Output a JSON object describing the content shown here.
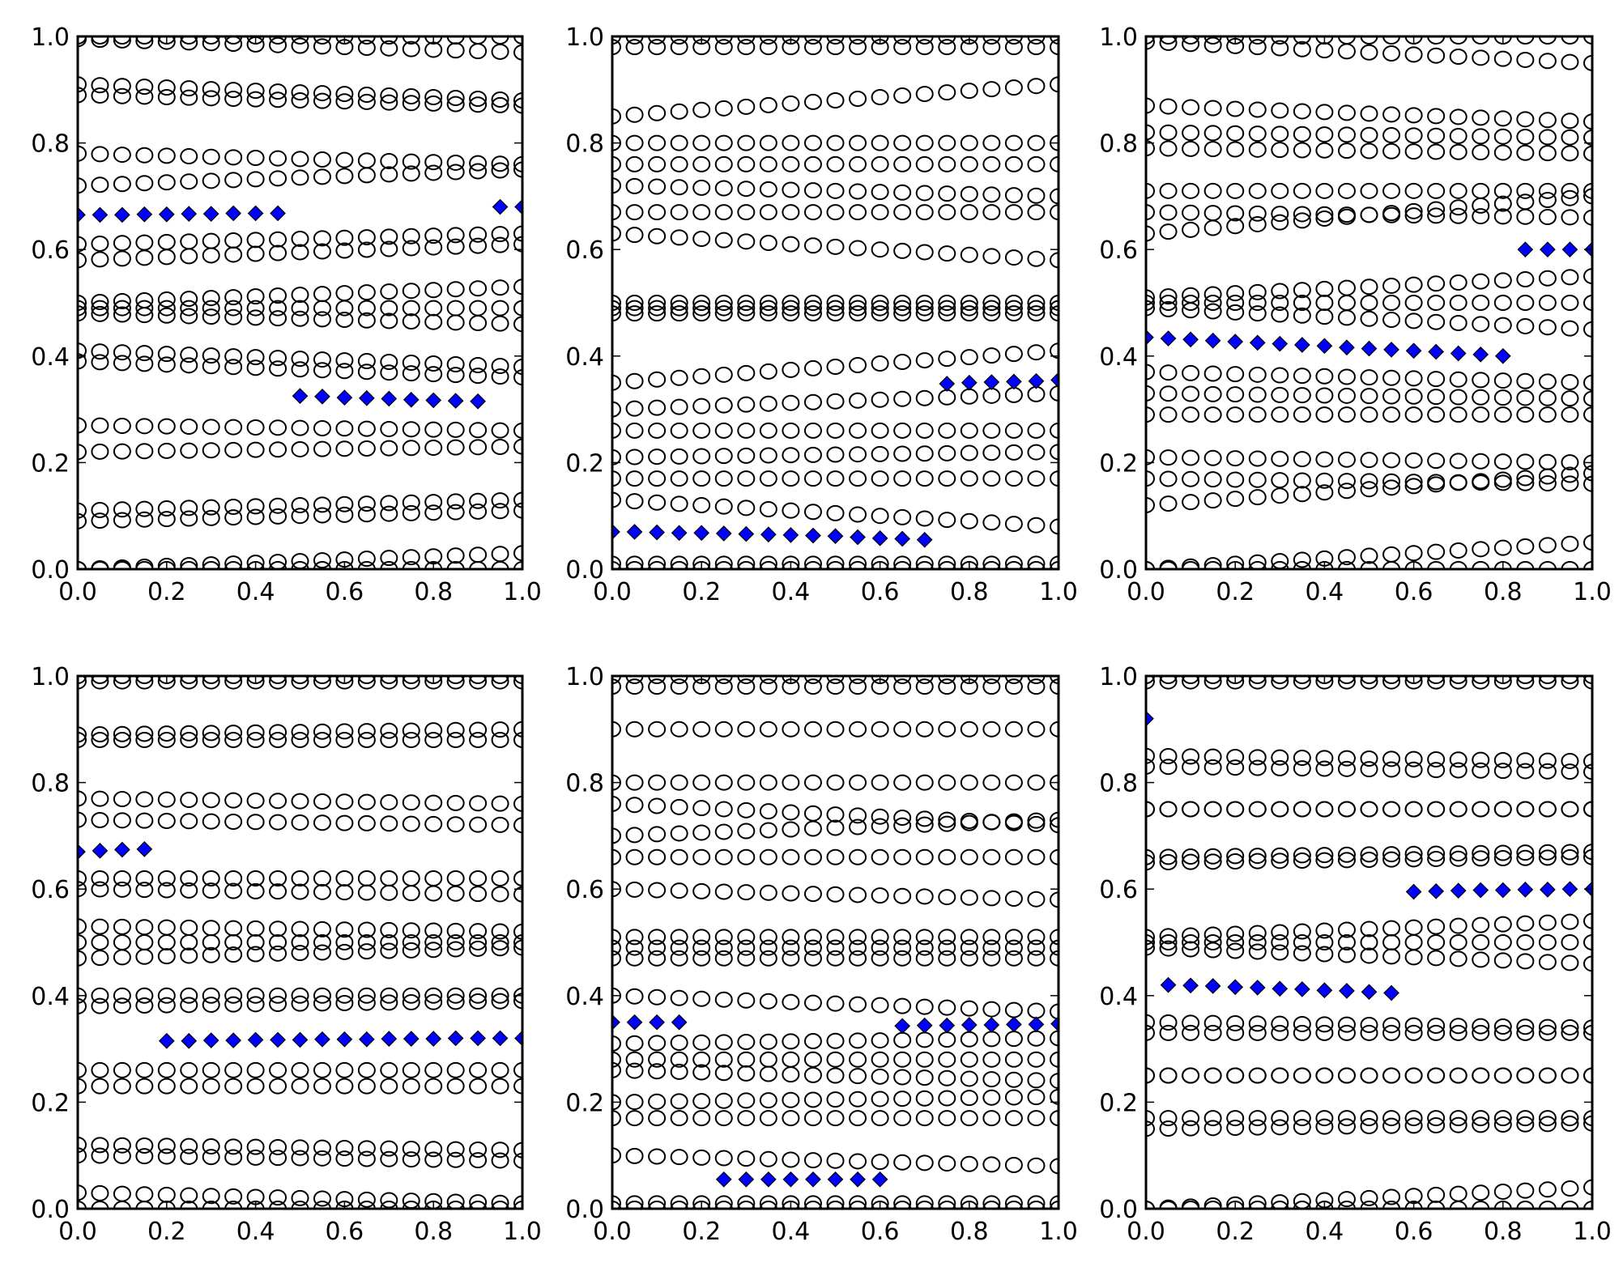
{
  "chart_data": [
    {
      "type": "scatter",
      "title": "",
      "xlabel": "",
      "ylabel": "",
      "xlim": [
        0,
        1
      ],
      "ylim": [
        0,
        1
      ],
      "x_ticks": [
        "0.0",
        "0.2",
        "0.4",
        "0.6",
        "0.8",
        "1.0"
      ],
      "y_ticks": [
        "0.0",
        "0.2",
        "0.4",
        "0.6",
        "0.8",
        "1.0"
      ],
      "x": [
        0,
        0.05,
        0.1,
        0.15,
        0.2,
        0.25,
        0.3,
        0.35,
        0.4,
        0.45,
        0.5,
        0.55,
        0.6,
        0.65,
        0.7,
        0.75,
        0.8,
        0.85,
        0.9,
        0.95,
        1.0
      ],
      "circle_series_y_start_end": [
        [
          1.0,
          1.0
        ],
        [
          0.995,
          0.97
        ],
        [
          0.91,
          0.88
        ],
        [
          0.89,
          0.87
        ],
        [
          0.78,
          0.76
        ],
        [
          0.72,
          0.75
        ],
        [
          0.61,
          0.63
        ],
        [
          0.58,
          0.61
        ],
        [
          0.5,
          0.53
        ],
        [
          0.49,
          0.49
        ],
        [
          0.48,
          0.46
        ],
        [
          0.41,
          0.38
        ],
        [
          0.39,
          0.36
        ],
        [
          0.27,
          0.26
        ],
        [
          0.22,
          0.23
        ],
        [
          0.11,
          0.13
        ],
        [
          0.09,
          0.11
        ],
        [
          0.0,
          0.03
        ],
        [
          0.0,
          0.0
        ]
      ],
      "diamond_series": [
        {
          "x": [
            0,
            0.05,
            0.1,
            0.15,
            0.2,
            0.25,
            0.3,
            0.35,
            0.4,
            0.45
          ],
          "y": [
            0.665,
            0.665,
            0.665,
            0.666,
            0.666,
            0.667,
            0.667,
            0.668,
            0.668,
            0.668
          ]
        },
        {
          "x": [
            0.5,
            0.55,
            0.6,
            0.65,
            0.7,
            0.75,
            0.8,
            0.85,
            0.9
          ],
          "y": [
            0.325,
            0.324,
            0.322,
            0.321,
            0.32,
            0.318,
            0.317,
            0.316,
            0.315
          ]
        },
        {
          "x": [
            0.95,
            1.0
          ],
          "y": [
            0.68,
            0.68
          ]
        }
      ]
    },
    {
      "type": "scatter",
      "title": "",
      "xlabel": "",
      "ylabel": "",
      "xlim": [
        0,
        1
      ],
      "ylim": [
        0,
        1
      ],
      "x_ticks": [
        "0.0",
        "0.2",
        "0.4",
        "0.6",
        "0.8",
        "1.0"
      ],
      "y_ticks": [
        "0.0",
        "0.2",
        "0.4",
        "0.6",
        "0.8",
        "1.0"
      ],
      "x": [
        0,
        0.05,
        0.1,
        0.15,
        0.2,
        0.25,
        0.3,
        0.35,
        0.4,
        0.45,
        0.5,
        0.55,
        0.6,
        0.65,
        0.7,
        0.75,
        0.8,
        0.85,
        0.9,
        0.95,
        1.0
      ],
      "circle_series_y_start_end": [
        [
          1.0,
          1.0
        ],
        [
          0.98,
          0.98
        ],
        [
          0.85,
          0.91
        ],
        [
          0.8,
          0.8
        ],
        [
          0.76,
          0.76
        ],
        [
          0.72,
          0.7
        ],
        [
          0.67,
          0.67
        ],
        [
          0.63,
          0.58
        ],
        [
          0.5,
          0.5
        ],
        [
          0.49,
          0.49
        ],
        [
          0.48,
          0.48
        ],
        [
          0.35,
          0.41
        ],
        [
          0.3,
          0.33
        ],
        [
          0.26,
          0.26
        ],
        [
          0.21,
          0.22
        ],
        [
          0.17,
          0.17
        ],
        [
          0.13,
          0.08
        ],
        [
          0.01,
          0.01
        ],
        [
          0.0,
          0.0
        ]
      ],
      "diamond_series": [
        {
          "x": [
            0,
            0.05,
            0.1,
            0.15,
            0.2,
            0.25,
            0.3,
            0.35,
            0.4,
            0.45,
            0.5,
            0.55,
            0.6,
            0.65,
            0.7
          ],
          "y": [
            0.07,
            0.07,
            0.069,
            0.068,
            0.068,
            0.067,
            0.066,
            0.065,
            0.064,
            0.063,
            0.062,
            0.06,
            0.058,
            0.057,
            0.055
          ]
        },
        {
          "x": [
            0.75,
            0.8,
            0.85,
            0.9,
            0.95,
            1.0
          ],
          "y": [
            0.348,
            0.35,
            0.351,
            0.352,
            0.353,
            0.355
          ]
        }
      ]
    },
    {
      "type": "scatter",
      "title": "",
      "xlabel": "",
      "ylabel": "",
      "xlim": [
        0,
        1
      ],
      "ylim": [
        0,
        1
      ],
      "x_ticks": [
        "0.0",
        "0.2",
        "0.4",
        "0.6",
        "0.8",
        "1.0"
      ],
      "y_ticks": [
        "0.0",
        "0.2",
        "0.4",
        "0.6",
        "0.8",
        "1.0"
      ],
      "x": [
        0,
        0.05,
        0.1,
        0.15,
        0.2,
        0.25,
        0.3,
        0.35,
        0.4,
        0.45,
        0.5,
        0.55,
        0.6,
        0.65,
        0.7,
        0.75,
        0.8,
        0.85,
        0.9,
        0.95,
        1.0
      ],
      "circle_series_y_start_end": [
        [
          1.0,
          1.0
        ],
        [
          0.99,
          0.95
        ],
        [
          0.87,
          0.84
        ],
        [
          0.82,
          0.81
        ],
        [
          0.79,
          0.78
        ],
        [
          0.71,
          0.71
        ],
        [
          0.67,
          0.66
        ],
        [
          0.63,
          0.7
        ],
        [
          0.51,
          0.55
        ],
        [
          0.5,
          0.5
        ],
        [
          0.49,
          0.45
        ],
        [
          0.37,
          0.35
        ],
        [
          0.33,
          0.32
        ],
        [
          0.29,
          0.29
        ],
        [
          0.21,
          0.2
        ],
        [
          0.17,
          0.16
        ],
        [
          0.12,
          0.18
        ],
        [
          0.0,
          0.05
        ],
        [
          0.0,
          0.0
        ]
      ],
      "diamond_series": [
        {
          "x": [
            0,
            0.05,
            0.1,
            0.15,
            0.2,
            0.25,
            0.3,
            0.35,
            0.4,
            0.45,
            0.5,
            0.55,
            0.6,
            0.65,
            0.7,
            0.75,
            0.8
          ],
          "y": [
            0.435,
            0.433,
            0.431,
            0.429,
            0.427,
            0.425,
            0.423,
            0.421,
            0.419,
            0.416,
            0.414,
            0.412,
            0.41,
            0.408,
            0.405,
            0.403,
            0.4
          ]
        },
        {
          "x": [
            0.85,
            0.9,
            0.95,
            1.0
          ],
          "y": [
            0.6,
            0.6,
            0.6,
            0.6
          ]
        }
      ]
    },
    {
      "type": "scatter",
      "title": "",
      "xlabel": "",
      "ylabel": "",
      "xlim": [
        0,
        1
      ],
      "ylim": [
        0,
        1
      ],
      "x_ticks": [
        "0.0",
        "0.2",
        "0.4",
        "0.6",
        "0.8",
        "1.0"
      ],
      "y_ticks": [
        "0.0",
        "0.2",
        "0.4",
        "0.6",
        "0.8",
        "1.0"
      ],
      "x": [
        0,
        0.05,
        0.1,
        0.15,
        0.2,
        0.25,
        0.3,
        0.35,
        0.4,
        0.45,
        0.5,
        0.55,
        0.6,
        0.65,
        0.7,
        0.75,
        0.8,
        0.85,
        0.9,
        0.95,
        1.0
      ],
      "circle_series_y_start_end": [
        [
          1.0,
          1.0
        ],
        [
          0.99,
          0.99
        ],
        [
          0.89,
          0.9
        ],
        [
          0.88,
          0.88
        ],
        [
          0.77,
          0.76
        ],
        [
          0.73,
          0.72
        ],
        [
          0.62,
          0.62
        ],
        [
          0.6,
          0.59
        ],
        [
          0.53,
          0.52
        ],
        [
          0.5,
          0.5
        ],
        [
          0.47,
          0.49
        ],
        [
          0.4,
          0.4
        ],
        [
          0.38,
          0.39
        ],
        [
          0.26,
          0.26
        ],
        [
          0.23,
          0.23
        ],
        [
          0.12,
          0.11
        ],
        [
          0.1,
          0.09
        ],
        [
          0.03,
          0.01
        ],
        [
          0.0,
          0.0
        ]
      ],
      "diamond_series": [
        {
          "x": [
            0,
            0.05,
            0.1,
            0.15
          ],
          "y": [
            0.67,
            0.672,
            0.674,
            0.675
          ]
        },
        {
          "x": [
            0.2,
            0.25,
            0.3,
            0.35,
            0.4,
            0.45,
            0.5,
            0.55,
            0.6,
            0.65,
            0.7,
            0.75,
            0.8,
            0.85,
            0.9,
            0.95,
            1.0
          ],
          "y": [
            0.315,
            0.315,
            0.316,
            0.316,
            0.317,
            0.317,
            0.317,
            0.318,
            0.318,
            0.318,
            0.319,
            0.319,
            0.319,
            0.32,
            0.32,
            0.32,
            0.32
          ]
        }
      ]
    },
    {
      "type": "scatter",
      "title": "",
      "xlabel": "",
      "ylabel": "",
      "xlim": [
        0,
        1
      ],
      "ylim": [
        0,
        1
      ],
      "x_ticks": [
        "0.0",
        "0.2",
        "0.4",
        "0.6",
        "0.8",
        "1.0"
      ],
      "y_ticks": [
        "0.0",
        "0.2",
        "0.4",
        "0.6",
        "0.8",
        "1.0"
      ],
      "x": [
        0,
        0.05,
        0.1,
        0.15,
        0.2,
        0.25,
        0.3,
        0.35,
        0.4,
        0.45,
        0.5,
        0.55,
        0.6,
        0.65,
        0.7,
        0.75,
        0.8,
        0.85,
        0.9,
        0.95,
        1.0
      ],
      "circle_series_y_start_end": [
        [
          1.0,
          1.0
        ],
        [
          0.98,
          0.98
        ],
        [
          0.9,
          0.9
        ],
        [
          0.8,
          0.8
        ],
        [
          0.76,
          0.72
        ],
        [
          0.7,
          0.73
        ],
        [
          0.66,
          0.66
        ],
        [
          0.6,
          0.58
        ],
        [
          0.51,
          0.51
        ],
        [
          0.49,
          0.49
        ],
        [
          0.47,
          0.47
        ],
        [
          0.4,
          0.37
        ],
        [
          0.31,
          0.32
        ],
        [
          0.28,
          0.28
        ],
        [
          0.26,
          0.24
        ],
        [
          0.2,
          0.21
        ],
        [
          0.17,
          0.17
        ],
        [
          0.1,
          0.08
        ],
        [
          0.01,
          0.01
        ],
        [
          0.0,
          0.0
        ]
      ],
      "diamond_series": [
        {
          "x": [
            0,
            0.05,
            0.1,
            0.15
          ],
          "y": [
            0.35,
            0.35,
            0.35,
            0.35
          ]
        },
        {
          "x": [
            0.25,
            0.3,
            0.35,
            0.4,
            0.45,
            0.5,
            0.55,
            0.6
          ],
          "y": [
            0.055,
            0.055,
            0.055,
            0.055,
            0.055,
            0.055,
            0.055,
            0.055
          ]
        },
        {
          "x": [
            0.65,
            0.7,
            0.75,
            0.8,
            0.85,
            0.9,
            0.95,
            1.0
          ],
          "y": [
            0.343,
            0.344,
            0.344,
            0.345,
            0.345,
            0.346,
            0.346,
            0.347
          ]
        }
      ]
    },
    {
      "type": "scatter",
      "title": "",
      "xlabel": "",
      "ylabel": "",
      "xlim": [
        0,
        1
      ],
      "ylim": [
        0,
        1
      ],
      "x_ticks": [
        "0.0",
        "0.2",
        "0.4",
        "0.6",
        "0.8",
        "1.0"
      ],
      "y_ticks": [
        "0.0",
        "0.2",
        "0.4",
        "0.6",
        "0.8",
        "1.0"
      ],
      "x": [
        0,
        0.05,
        0.1,
        0.15,
        0.2,
        0.25,
        0.3,
        0.35,
        0.4,
        0.45,
        0.5,
        0.55,
        0.6,
        0.65,
        0.7,
        0.75,
        0.8,
        0.85,
        0.9,
        0.95,
        1.0
      ],
      "circle_series_y_start_end": [
        [
          1.0,
          1.0
        ],
        [
          0.99,
          0.99
        ],
        [
          0.85,
          0.84
        ],
        [
          0.83,
          0.82
        ],
        [
          0.75,
          0.75
        ],
        [
          0.75,
          0.75
        ],
        [
          0.66,
          0.67
        ],
        [
          0.65,
          0.66
        ],
        [
          0.51,
          0.54
        ],
        [
          0.5,
          0.5
        ],
        [
          0.49,
          0.46
        ],
        [
          0.35,
          0.34
        ],
        [
          0.33,
          0.33
        ],
        [
          0.25,
          0.25
        ],
        [
          0.25,
          0.25
        ],
        [
          0.17,
          0.17
        ],
        [
          0.15,
          0.16
        ],
        [
          0.0,
          0.04
        ],
        [
          0.0,
          0.0
        ]
      ],
      "diamond_series": [
        {
          "x": [
            0
          ],
          "y": [
            0.92
          ]
        },
        {
          "x": [
            0.05,
            0.1,
            0.15,
            0.2,
            0.25,
            0.3,
            0.35,
            0.4,
            0.45,
            0.5,
            0.55
          ],
          "y": [
            0.42,
            0.419,
            0.418,
            0.416,
            0.415,
            0.413,
            0.412,
            0.41,
            0.409,
            0.407,
            0.405
          ]
        },
        {
          "x": [
            0.6,
            0.65,
            0.7,
            0.75,
            0.8,
            0.85,
            0.9,
            0.95,
            1.0
          ],
          "y": [
            0.595,
            0.596,
            0.597,
            0.598,
            0.598,
            0.599,
            0.599,
            0.6,
            0.6
          ]
        }
      ]
    }
  ],
  "colors": {
    "diamond_fill": "#0000ff",
    "circle_edge": "#000000",
    "axes": "#000000"
  }
}
